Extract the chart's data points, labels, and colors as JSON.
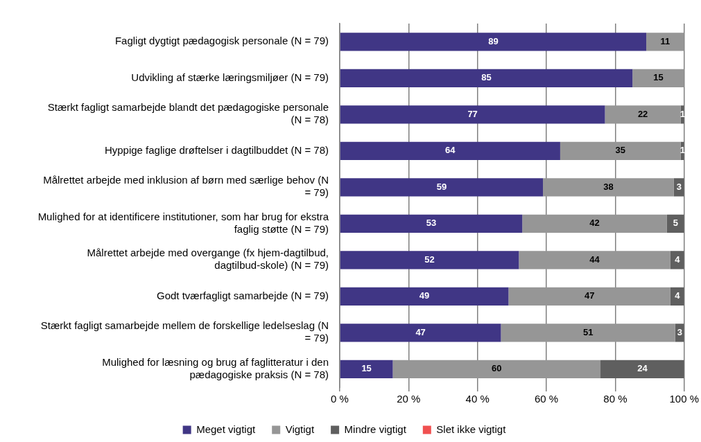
{
  "chart_data": {
    "type": "bar",
    "orientation": "horizontal",
    "stacked": true,
    "categories": [
      "Fagligt dygtigt pædagogisk personale (N = 79)",
      "Udvikling af stærke læringsmiljøer (N = 79)",
      "Stærkt fagligt samarbejde blandt det pædagogiske personale (N = 78)",
      "Hyppige faglige drøftelser i dagtilbuddet (N = 78)",
      "Målrettet arbejde med inklusion af børn med særlige behov (N = 79)",
      "Mulighed for at identificere institutioner, som har brug for ekstra faglig støtte (N = 79)",
      "Målrettet arbejde med overgange (fx hjem-dagtilbud, dagtilbud-skole) (N = 79)",
      "Godt tværfagligt samarbejde (N = 79)",
      "Stærkt fagligt samarbejde mellem de forskellige ledelseslag (N = 79)",
      "Mulighed for læsning og brug af faglitteratur i den pædagogiske praksis (N = 78)"
    ],
    "series": [
      {
        "name": "Meget vigtigt",
        "color": "#403685",
        "values": [
          89,
          85,
          77,
          64,
          59,
          53,
          52,
          49,
          46.8,
          15.4
        ],
        "value_labels": [
          "89",
          "85",
          "77",
          "64",
          "59",
          "53",
          "52",
          "49",
          "47",
          "15"
        ]
      },
      {
        "name": "Vigtigt",
        "color": "#969696",
        "values": [
          11,
          15,
          22,
          35,
          38,
          42,
          44,
          47,
          50.6,
          60.3
        ],
        "value_labels": [
          "11",
          "15",
          "22",
          "35",
          "38",
          "42",
          "44",
          "47",
          "51",
          "60"
        ]
      },
      {
        "name": "Mindre vigtigt",
        "color": "#5f5f5f",
        "values": [
          0,
          0,
          1,
          1,
          3,
          5,
          4,
          4,
          2.6,
          24.3
        ],
        "value_labels": [
          null,
          null,
          "1",
          "1",
          "3",
          "5",
          "4",
          "4",
          "3",
          "24"
        ]
      },
      {
        "name": "Slet ikke vigtigt",
        "color": "#f05050",
        "values": [
          0,
          0,
          0,
          0,
          0,
          0,
          0,
          0,
          0,
          0
        ],
        "value_labels": [
          null,
          null,
          null,
          null,
          null,
          null,
          null,
          null,
          null,
          null
        ]
      }
    ],
    "xlim": [
      0,
      100
    ],
    "xticks": [
      {
        "value": 0,
        "label": "0 %"
      },
      {
        "value": 20,
        "label": "20 %"
      },
      {
        "value": 40,
        "label": "40 %"
      },
      {
        "value": 60,
        "label": "60 %"
      },
      {
        "value": 80,
        "label": "80 %"
      },
      {
        "value": 100,
        "label": "100 %"
      }
    ],
    "grid": "x",
    "legend": "bottom"
  }
}
